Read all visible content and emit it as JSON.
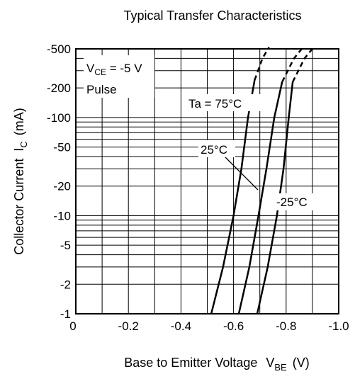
{
  "chart_data": {
    "type": "line",
    "title": "Typical Transfer Characteristics",
    "xlabel": {
      "main": "Base to Emitter Voltage",
      "sym": "V",
      "sub": "BE",
      "unit": "(V)"
    },
    "ylabel": {
      "main": "Collector Current",
      "sym": "I",
      "sub": "C",
      "unit": "(mA)"
    },
    "x_axis": {
      "scale": "linear",
      "min": 0,
      "max": -1.0,
      "ticks": [
        0,
        -0.1,
        -0.2,
        -0.3,
        -0.4,
        -0.5,
        -0.6,
        -0.7,
        -0.8,
        -0.9,
        -1.0
      ],
      "tick_labels": [
        {
          "v": 0,
          "label": "0"
        },
        {
          "v": -0.2,
          "label": "-0.2"
        },
        {
          "v": -0.4,
          "label": "-0.4"
        },
        {
          "v": -0.6,
          "label": "-0.6"
        },
        {
          "v": -0.8,
          "label": "-0.8"
        },
        {
          "v": -1.0,
          "label": "-1.0"
        }
      ]
    },
    "y_axis": {
      "scale": "log",
      "min": -1,
      "max": -500,
      "tick_labels": [
        {
          "v": -1,
          "label": "-1"
        },
        {
          "v": -2,
          "label": "-2"
        },
        {
          "v": -5,
          "label": "-5"
        },
        {
          "v": -10,
          "label": "-10"
        },
        {
          "v": -20,
          "label": "-20"
        },
        {
          "v": -50,
          "label": "-50"
        },
        {
          "v": -100,
          "label": "-100"
        },
        {
          "v": -200,
          "label": "-200"
        },
        {
          "v": -500,
          "label": "-500"
        }
      ]
    },
    "grid": true,
    "conditions": {
      "vce_sym": "V",
      "vce_sub": "CE",
      "vce_value": " = -5 V",
      "mode": "Pulse"
    },
    "series": [
      {
        "name": "Ta = 75°C",
        "solid": [
          [
            -0.515,
            -1
          ],
          [
            -0.56,
            -3
          ],
          [
            -0.6,
            -10
          ],
          [
            -0.63,
            -30
          ],
          [
            -0.655,
            -100
          ],
          [
            -0.68,
            -240
          ]
        ],
        "dashed": [
          [
            -0.68,
            -240
          ],
          [
            -0.71,
            -400
          ],
          [
            -0.735,
            -520
          ]
        ]
      },
      {
        "name": "25°C",
        "solid": [
          [
            -0.62,
            -1
          ],
          [
            -0.66,
            -3
          ],
          [
            -0.695,
            -10
          ],
          [
            -0.725,
            -30
          ],
          [
            -0.755,
            -100
          ],
          [
            -0.785,
            -230
          ]
        ],
        "dashed": [
          [
            -0.785,
            -230
          ],
          [
            -0.83,
            -400
          ],
          [
            -0.865,
            -520
          ]
        ]
      },
      {
        "name": "-25°C",
        "solid": [
          [
            -0.69,
            -1
          ],
          [
            -0.73,
            -3
          ],
          [
            -0.765,
            -10
          ],
          [
            -0.79,
            -30
          ],
          [
            -0.81,
            -100
          ],
          [
            -0.825,
            -230
          ]
        ],
        "dashed": [
          [
            -0.825,
            -230
          ],
          [
            -0.87,
            -400
          ],
          [
            -0.905,
            -520
          ]
        ]
      }
    ]
  }
}
